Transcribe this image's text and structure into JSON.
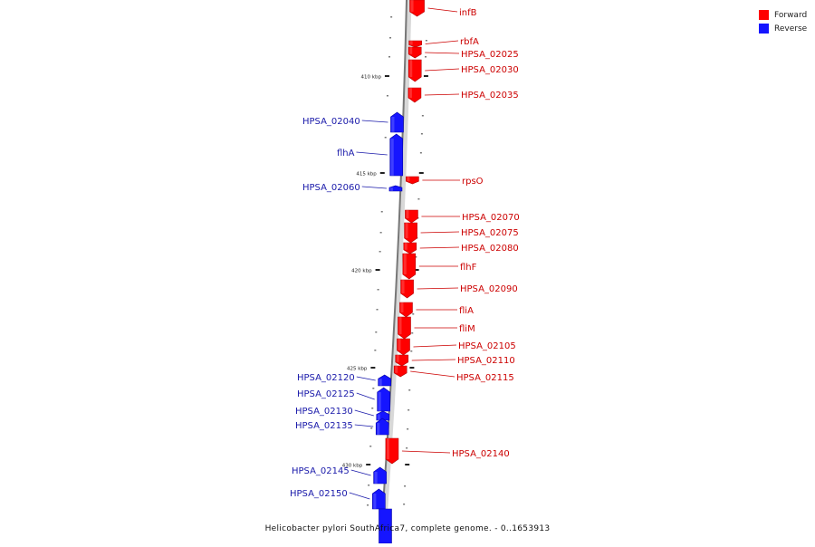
{
  "legend": {
    "forward": {
      "label": "Forward",
      "color": "#ff0000"
    },
    "reverse": {
      "label": "Reverse",
      "color": "#1515ff"
    }
  },
  "caption": "Helicobacter pylori SouthAfrica7, complete genome. - 0..1653913",
  "scale_unit": "kbp",
  "scale_labels": [
    "410 kbp",
    "415 kbp",
    "420 kbp",
    "425 kbp",
    "430 kbp"
  ],
  "label_colors": {
    "forward": "#cc0000",
    "reverse": "#1a1aaa"
  },
  "genes": [
    {
      "name": "infB",
      "strand": "forward"
    },
    {
      "name": "rbfA",
      "strand": "forward"
    },
    {
      "name": "HPSA_02025",
      "strand": "forward"
    },
    {
      "name": "HPSA_02030",
      "strand": "forward"
    },
    {
      "name": "HPSA_02035",
      "strand": "forward"
    },
    {
      "name": "HPSA_02040",
      "strand": "reverse"
    },
    {
      "name": "flhA",
      "strand": "reverse"
    },
    {
      "name": "rpsO",
      "strand": "forward"
    },
    {
      "name": "HPSA_02060",
      "strand": "reverse"
    },
    {
      "name": "HPSA_02070",
      "strand": "forward"
    },
    {
      "name": "HPSA_02075",
      "strand": "forward"
    },
    {
      "name": "HPSA_02080",
      "strand": "forward"
    },
    {
      "name": "flhF",
      "strand": "forward"
    },
    {
      "name": "HPSA_02090",
      "strand": "forward"
    },
    {
      "name": "fliA",
      "strand": "forward"
    },
    {
      "name": "fliM",
      "strand": "forward"
    },
    {
      "name": "HPSA_02105",
      "strand": "forward"
    },
    {
      "name": "HPSA_02110",
      "strand": "forward"
    },
    {
      "name": "HPSA_02115",
      "strand": "forward"
    },
    {
      "name": "HPSA_02120",
      "strand": "reverse"
    },
    {
      "name": "HPSA_02125",
      "strand": "reverse"
    },
    {
      "name": "HPSA_02130",
      "strand": "reverse"
    },
    {
      "name": "HPSA_02135",
      "strand": "reverse"
    },
    {
      "name": "HPSA_02140",
      "strand": "forward"
    },
    {
      "name": "HPSA_02145",
      "strand": "reverse"
    },
    {
      "name": "HPSA_02150",
      "strand": "reverse"
    }
  ]
}
